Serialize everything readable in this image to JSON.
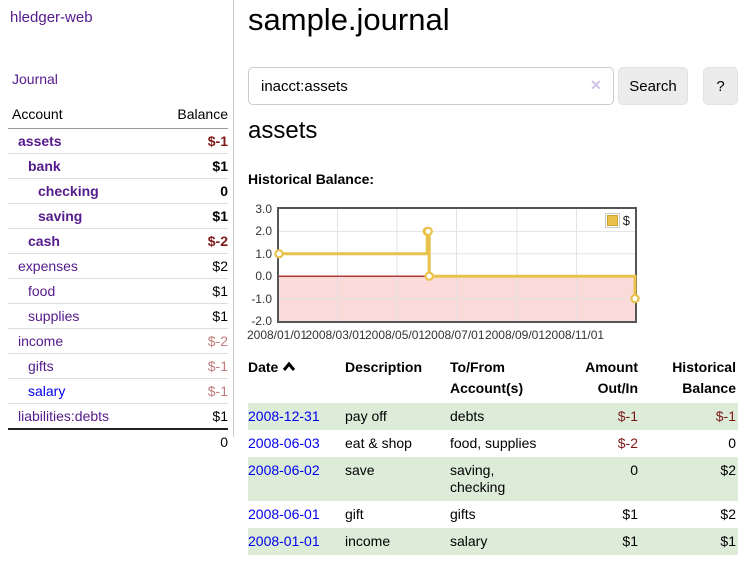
{
  "app": {
    "brand": "hledger-web"
  },
  "sidebar": {
    "nav_journal": "Journal",
    "accounts": {
      "header_account": "Account",
      "header_balance": "Balance",
      "rows": [
        {
          "label": "assets",
          "balance": "$-1",
          "indent": 1,
          "bold": true,
          "neg": "strong",
          "unvisited": false
        },
        {
          "label": "bank",
          "balance": "$1",
          "indent": 2,
          "bold": true,
          "neg": null,
          "unvisited": false
        },
        {
          "label": "checking",
          "balance": "0",
          "indent": 3,
          "bold": true,
          "neg": null,
          "unvisited": false
        },
        {
          "label": "saving",
          "balance": "$1",
          "indent": 3,
          "bold": true,
          "neg": null,
          "unvisited": false
        },
        {
          "label": "cash",
          "balance": "$-2",
          "indent": 2,
          "bold": true,
          "neg": "strong",
          "unvisited": false
        },
        {
          "label": "expenses",
          "balance": "$2",
          "indent": 1,
          "bold": false,
          "neg": null,
          "unvisited": false
        },
        {
          "label": "food",
          "balance": "$1",
          "indent": 2,
          "bold": false,
          "neg": null,
          "unvisited": false
        },
        {
          "label": "supplies",
          "balance": "$1",
          "indent": 2,
          "bold": false,
          "neg": null,
          "unvisited": false
        },
        {
          "label": "income",
          "balance": "$-2",
          "indent": 1,
          "bold": false,
          "neg": "soft",
          "unvisited": false
        },
        {
          "label": "gifts",
          "balance": "$-1",
          "indent": 2,
          "bold": false,
          "neg": "soft",
          "unvisited": false
        },
        {
          "label": "salary",
          "balance": "$-1",
          "indent": 2,
          "bold": false,
          "neg": "soft",
          "unvisited": true
        },
        {
          "label": "liabilities:debts",
          "balance": "$1",
          "indent": 1,
          "bold": false,
          "neg": null,
          "unvisited": false
        }
      ],
      "total": "0"
    }
  },
  "header": {
    "title": "sample.journal"
  },
  "search": {
    "value": "inacct:assets",
    "clear_icon": "✕",
    "search_button": "Search",
    "help_button": "?"
  },
  "register": {
    "account_title": "assets",
    "chart_label": "Historical Balance:",
    "table": {
      "headers": [
        "Date",
        "Description",
        "To/From Account(s)",
        "Amount Out/In",
        "Historical Balance"
      ],
      "rows": [
        {
          "date": "2008-12-31",
          "description": "pay off",
          "accounts": [
            "debts"
          ],
          "amount": "$-1",
          "amount_negative": true,
          "balance": "$-1",
          "balance_negative": true
        },
        {
          "date": "2008-06-03",
          "description": "eat & shop",
          "accounts": [
            "food, supplies"
          ],
          "amount": "$-2",
          "amount_negative": true,
          "balance": "0",
          "balance_negative": false
        },
        {
          "date": "2008-06-02",
          "description": "save",
          "accounts": [
            "saving,",
            "checking"
          ],
          "amount": "0",
          "amount_negative": false,
          "balance": "$2",
          "balance_negative": false
        },
        {
          "date": "2008-06-01",
          "description": "gift",
          "accounts": [
            "gifts"
          ],
          "amount": "$1",
          "amount_negative": false,
          "balance": "$2",
          "balance_negative": false
        },
        {
          "date": "2008-01-01",
          "description": "income",
          "accounts": [
            "salary"
          ],
          "amount": "$1",
          "amount_negative": false,
          "balance": "$1",
          "balance_negative": false
        }
      ]
    }
  },
  "chart_data": {
    "type": "line",
    "step": true,
    "title": "Historical Balance",
    "xlabel": "",
    "ylabel": "",
    "series": [
      {
        "name": "$",
        "color": "#e8c24a",
        "points": [
          [
            "2008-01-01",
            1
          ],
          [
            "2008-06-01",
            2
          ],
          [
            "2008-06-02",
            2
          ],
          [
            "2008-06-03",
            0
          ],
          [
            "2008-12-31",
            -1
          ]
        ]
      }
    ],
    "xrange": [
      "2008-01-01",
      "2008-12-31"
    ],
    "ylim": [
      -2,
      3
    ],
    "yticks": [
      3.0,
      2.0,
      1.0,
      0.0,
      -1.0,
      -2.0
    ],
    "xticks": [
      "2008/01/01",
      "2008/03/01",
      "2008/05/01",
      "2008/07/01",
      "2008/09/01",
      "2008/11/01"
    ],
    "grid": true,
    "legend_position": "top-right",
    "negative_region_color": "#fbdada",
    "zero_line_color": "#9d0000"
  },
  "colors": {
    "link_visited_purple": "#551a8b",
    "link_blue": "#0000ee",
    "negative_strong": "#7e1a1a",
    "negative_soft": "#c17d7d",
    "row_stripe_green": "#dcecd9",
    "chart_line": "#e8c24a",
    "chart_negative_fill": "#fbdada",
    "chart_zero_line": "#9d0000",
    "button_bg": "#ececec"
  }
}
